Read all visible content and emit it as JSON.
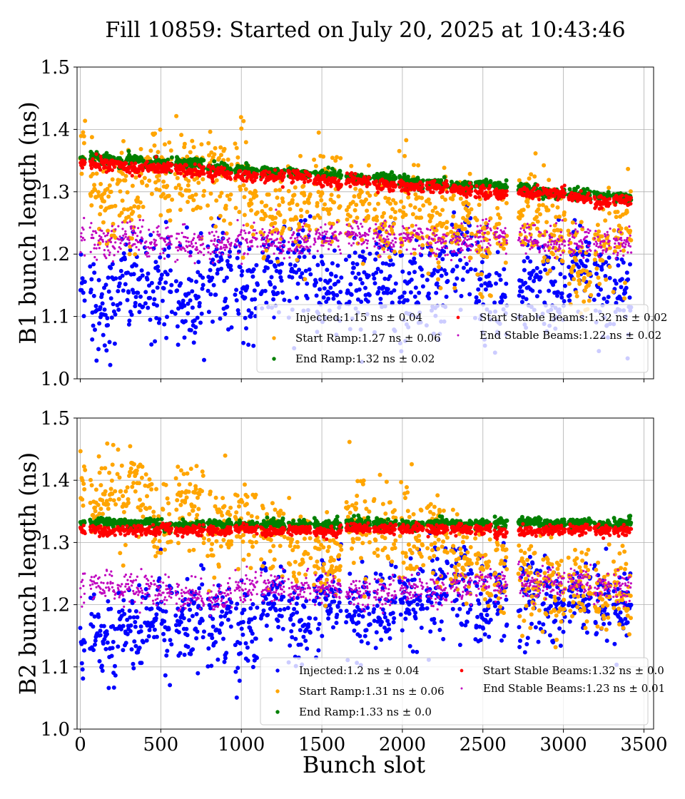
{
  "chart_data": {
    "type": "scatter",
    "title": "Fill 10859: Started on July 20, 2025 at 10:43:46",
    "xlabel": "Bunch slot",
    "xlim": [
      -20,
      3560
    ],
    "xticks": [
      0,
      500,
      1000,
      1500,
      2000,
      2500,
      3000,
      3500
    ],
    "grid": true,
    "colors": {
      "Injected": "#0000ff",
      "Start Ramp": "#ffa500",
      "End Ramp": "#008000",
      "Start Stable Beams": "#ff0000",
      "End Stable Beams": "#bf00bf"
    },
    "train_starts": [
      0,
      60,
      110,
      230,
      290,
      400,
      450,
      510,
      590,
      790,
      960,
      1120,
      1290,
      1450,
      1650,
      1820,
      1980,
      2150,
      2300,
      2450,
      2570,
      2720,
      2870,
      3030,
      3190,
      3310
    ],
    "train_lengths": [
      30,
      45,
      110,
      55,
      100,
      45,
      55,
      60,
      180,
      150,
      140,
      150,
      140,
      170,
      150,
      140,
      150,
      130,
      130,
      100,
      80,
      140,
      140,
      140,
      100,
      110
    ],
    "panels": [
      {
        "ylabel": "B1 bunch length (ns)",
        "ylim": [
          1.0,
          1.5
        ],
        "yticks": [
          "1.0",
          "1.1",
          "1.2",
          "1.3",
          "1.4",
          "1.5"
        ],
        "legend_position": "lower right",
        "series": [
          {
            "name": "Injected",
            "label": "Injected:1.15 ns ± 0.04",
            "level_start": 1.15,
            "level_end": 1.15,
            "spread": 0.04
          },
          {
            "name": "Start Ramp",
            "label": "Start Ramp:1.27 ns ± 0.06",
            "level_start": 1.33,
            "level_end": 1.22,
            "spread": 0.04
          },
          {
            "name": "End Ramp",
            "label": "End Ramp:1.32 ns ± 0.02",
            "level_start": 1.355,
            "level_end": 1.29,
            "spread": 0.004
          },
          {
            "name": "Start Stable Beams",
            "label": "Start Stable Beams:1.32 ns ± 0.02",
            "level_start": 1.345,
            "level_end": 1.283,
            "spread": 0.005
          },
          {
            "name": "End Stable Beams",
            "label": "End Stable Beams:1.22 ns ± 0.02",
            "level_start": 1.22,
            "level_end": 1.22,
            "spread": 0.012
          }
        ]
      },
      {
        "ylabel": "B2 bunch length (ns)",
        "ylim": [
          1.0,
          1.5
        ],
        "yticks": [
          "1.0",
          "1.1",
          "1.2",
          "1.3",
          "1.4",
          "1.5"
        ],
        "xticklabels": [
          "0",
          "500",
          "1000",
          "1500",
          "2000",
          "2500",
          "3000",
          "3500"
        ],
        "legend_position": "lower right",
        "series": [
          {
            "name": "Injected",
            "label": "Injected:1.2 ns ± 0.04",
            "level_start": 1.17,
            "level_end": 1.22,
            "spread": 0.035
          },
          {
            "name": "Start Ramp",
            "label": "Start Ramp:1.31 ns ± 0.06",
            "level_start": 1.38,
            "level_end": 1.22,
            "spread": 0.035
          },
          {
            "name": "End Ramp",
            "label": "End Ramp:1.33 ns ± 0.0",
            "level_start": 1.33,
            "level_end": 1.33,
            "spread": 0.004
          },
          {
            "name": "Start Stable Beams",
            "label": "Start Stable Beams:1.32 ns ± 0.0",
            "level_start": 1.32,
            "level_end": 1.32,
            "spread": 0.004
          },
          {
            "name": "End Stable Beams",
            "label": "End Stable Beams:1.23 ns ± 0.01",
            "level_start": 1.22,
            "level_end": 1.23,
            "spread": 0.012
          }
        ]
      }
    ]
  }
}
